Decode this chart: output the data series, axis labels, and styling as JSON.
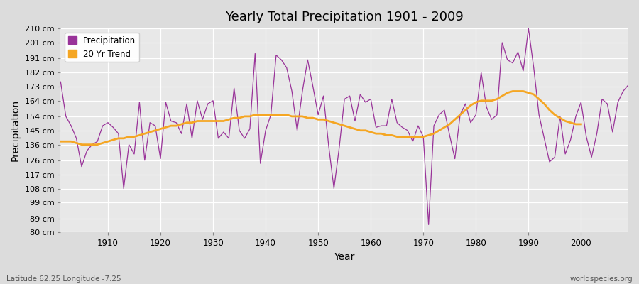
{
  "title": "Yearly Total Precipitation 1901 - 2009",
  "xlabel": "Year",
  "ylabel": "Precipitation",
  "subtitle_left": "Latitude 62.25 Longitude -7.25",
  "subtitle_right": "worldspecies.org",
  "legend_labels": [
    "Precipitation",
    "20 Yr Trend"
  ],
  "precip_color": "#993399",
  "trend_color": "#f5a623",
  "bg_color": "#dcdcdc",
  "plot_bg_color": "#e8e8e8",
  "ylim": [
    80,
    210
  ],
  "yticks": [
    80,
    89,
    99,
    108,
    117,
    126,
    136,
    145,
    154,
    164,
    173,
    182,
    191,
    201,
    210
  ],
  "xticks": [
    1910,
    1920,
    1930,
    1940,
    1950,
    1960,
    1970,
    1980,
    1990,
    2000
  ],
  "xlim": [
    1901,
    2009
  ],
  "years": [
    1901,
    1902,
    1903,
    1904,
    1905,
    1906,
    1907,
    1908,
    1909,
    1910,
    1911,
    1912,
    1913,
    1914,
    1915,
    1916,
    1917,
    1918,
    1919,
    1920,
    1921,
    1922,
    1923,
    1924,
    1925,
    1926,
    1927,
    1928,
    1929,
    1930,
    1931,
    1932,
    1933,
    1934,
    1935,
    1936,
    1937,
    1938,
    1939,
    1940,
    1941,
    1942,
    1943,
    1944,
    1945,
    1946,
    1947,
    1948,
    1949,
    1950,
    1951,
    1952,
    1953,
    1954,
    1955,
    1956,
    1957,
    1958,
    1959,
    1960,
    1961,
    1962,
    1963,
    1964,
    1965,
    1966,
    1967,
    1968,
    1969,
    1970,
    1971,
    1972,
    1973,
    1974,
    1975,
    1976,
    1977,
    1978,
    1979,
    1980,
    1981,
    1982,
    1983,
    1984,
    1985,
    1986,
    1987,
    1988,
    1989,
    1990,
    1991,
    1992,
    1993,
    1994,
    1995,
    1996,
    1997,
    1998,
    1999,
    2000,
    2001,
    2002,
    2003,
    2004,
    2005,
    2006,
    2007,
    2008,
    2009
  ],
  "precip": [
    176,
    154,
    148,
    140,
    122,
    132,
    136,
    138,
    148,
    150,
    147,
    143,
    108,
    136,
    130,
    163,
    126,
    150,
    148,
    127,
    163,
    151,
    150,
    143,
    162,
    140,
    164,
    152,
    162,
    164,
    140,
    144,
    140,
    172,
    145,
    140,
    146,
    194,
    124,
    145,
    155,
    193,
    190,
    185,
    170,
    145,
    170,
    190,
    173,
    155,
    167,
    135,
    108,
    134,
    165,
    167,
    151,
    168,
    163,
    165,
    147,
    148,
    148,
    165,
    150,
    147,
    145,
    138,
    148,
    141,
    85,
    148,
    155,
    158,
    142,
    127,
    155,
    162,
    150,
    155,
    182,
    160,
    152,
    155,
    201,
    190,
    188,
    195,
    183,
    210,
    185,
    155,
    140,
    125,
    128,
    154,
    130,
    139,
    154,
    163,
    141,
    128,
    143,
    165,
    162,
    144,
    163,
    170,
    174
  ],
  "trend": [
    138,
    138,
    138,
    137,
    136,
    136,
    136,
    136,
    137,
    138,
    139,
    140,
    140,
    141,
    141,
    142,
    143,
    144,
    145,
    146,
    147,
    148,
    148,
    149,
    150,
    150,
    151,
    151,
    151,
    151,
    151,
    151,
    152,
    153,
    153,
    154,
    154,
    155,
    155,
    155,
    155,
    155,
    155,
    155,
    154,
    154,
    154,
    153,
    153,
    152,
    152,
    151,
    150,
    149,
    148,
    147,
    146,
    145,
    145,
    144,
    143,
    143,
    142,
    142,
    141,
    141,
    141,
    141,
    141,
    141,
    142,
    143,
    145,
    147,
    149,
    152,
    155,
    158,
    161,
    163,
    164,
    164,
    164,
    165,
    167,
    169,
    170,
    170,
    170,
    169,
    168,
    165,
    162,
    158,
    155,
    153,
    151,
    150,
    149,
    149,
    null,
    null,
    null,
    null,
    null,
    null,
    null,
    null,
    null
  ]
}
